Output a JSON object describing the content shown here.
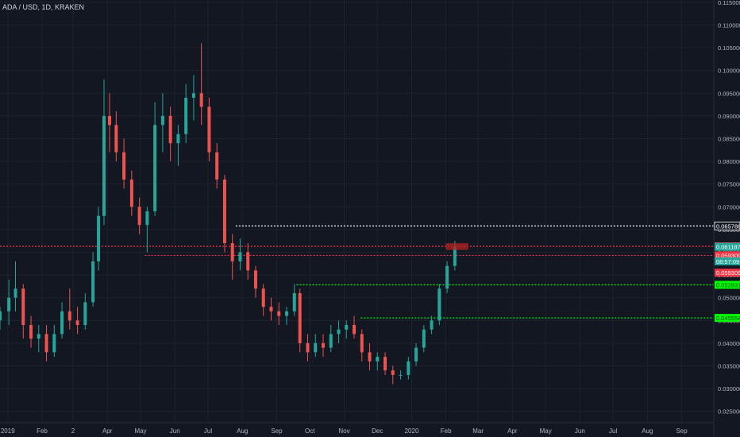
{
  "header": {
    "symbol_title": "ADA / USD, 1D, KRAKEN"
  },
  "chart_data": {
    "type": "candlestick",
    "title": "ADA / USD, 1D, KRAKEN",
    "y_axis": {
      "range": [
        0.0225,
        0.1155
      ],
      "ticks": [
        "0.115000",
        "0.110000",
        "0.105000",
        "0.100000",
        "0.095000",
        "0.090000",
        "0.085000",
        "0.080000",
        "0.075000",
        "0.070000",
        "0.065000",
        "0.060000",
        "0.055000",
        "0.050000",
        "0.045000",
        "0.040000",
        "0.035000",
        "0.030000",
        "0.025000"
      ]
    },
    "x_axis": {
      "range": [
        "2018-12-25",
        "2020-09-30"
      ],
      "ticks": [
        {
          "label": "2019",
          "date": "2019-01-01"
        },
        {
          "label": "Feb",
          "date": "2019-02-01"
        },
        {
          "label": "2",
          "date": "2019-03-01"
        },
        {
          "label": "Apr",
          "date": "2019-04-01"
        },
        {
          "label": "May",
          "date": "2019-05-01"
        },
        {
          "label": "Jun",
          "date": "2019-06-01"
        },
        {
          "label": "Jul",
          "date": "2019-07-01"
        },
        {
          "label": "Aug",
          "date": "2019-08-01"
        },
        {
          "label": "Sep",
          "date": "2019-09-01"
        },
        {
          "label": "Oct",
          "date": "2019-10-01"
        },
        {
          "label": "Nov",
          "date": "2019-11-01"
        },
        {
          "label": "Dec",
          "date": "2019-12-01"
        },
        {
          "label": "2020",
          "date": "2020-01-01"
        },
        {
          "label": "Feb",
          "date": "2020-02-01"
        },
        {
          "label": "Mar",
          "date": "2020-03-01"
        },
        {
          "label": "Apr",
          "date": "2020-04-01"
        },
        {
          "label": "May",
          "date": "2020-05-01"
        },
        {
          "label": "Jun",
          "date": "2020-06-01"
        },
        {
          "label": "Jul",
          "date": "2020-07-01"
        },
        {
          "label": "Aug",
          "date": "2020-08-01"
        },
        {
          "label": "Sep",
          "date": "2020-09-01"
        }
      ]
    },
    "grid": true,
    "colors": {
      "up": "#26a69a",
      "down": "#ef5350",
      "background": "#131722",
      "grid": "#1e222d"
    },
    "series": [
      {
        "ohlc": [
          [
            "2018-12-25",
            0.045,
            0.048,
            0.043,
            0.047
          ],
          [
            "2019-01-02",
            0.047,
            0.054,
            0.044,
            0.05
          ],
          [
            "2019-01-08",
            0.05,
            0.058,
            0.047,
            0.052
          ],
          [
            "2019-01-15",
            0.052,
            0.053,
            0.041,
            0.044
          ],
          [
            "2019-01-22",
            0.044,
            0.046,
            0.039,
            0.041
          ],
          [
            "2019-01-29",
            0.041,
            0.044,
            0.038,
            0.042
          ],
          [
            "2019-02-05",
            0.042,
            0.044,
            0.036,
            0.038
          ],
          [
            "2019-02-12",
            0.038,
            0.044,
            0.037,
            0.042
          ],
          [
            "2019-02-19",
            0.042,
            0.049,
            0.041,
            0.047
          ],
          [
            "2019-02-26",
            0.047,
            0.052,
            0.043,
            0.045
          ],
          [
            "2019-03-05",
            0.045,
            0.048,
            0.042,
            0.044
          ],
          [
            "2019-03-12",
            0.044,
            0.051,
            0.043,
            0.049
          ],
          [
            "2019-03-19",
            0.049,
            0.06,
            0.048,
            0.058
          ],
          [
            "2019-03-24",
            0.058,
            0.07,
            0.056,
            0.068
          ],
          [
            "2019-03-29",
            0.068,
            0.098,
            0.066,
            0.09
          ],
          [
            "2019-04-03",
            0.09,
            0.095,
            0.082,
            0.088
          ],
          [
            "2019-04-09",
            0.088,
            0.091,
            0.08,
            0.082
          ],
          [
            "2019-04-16",
            0.082,
            0.085,
            0.074,
            0.076
          ],
          [
            "2019-04-23",
            0.076,
            0.078,
            0.068,
            0.07
          ],
          [
            "2019-04-30",
            0.07,
            0.072,
            0.064,
            0.066
          ],
          [
            "2019-05-07",
            0.066,
            0.07,
            0.06,
            0.069
          ],
          [
            "2019-05-14",
            0.069,
            0.093,
            0.068,
            0.088
          ],
          [
            "2019-05-21",
            0.088,
            0.095,
            0.082,
            0.09
          ],
          [
            "2019-05-28",
            0.09,
            0.092,
            0.08,
            0.084
          ],
          [
            "2019-06-04",
            0.084,
            0.088,
            0.079,
            0.086
          ],
          [
            "2019-06-11",
            0.086,
            0.097,
            0.084,
            0.094
          ],
          [
            "2019-06-18",
            0.094,
            0.099,
            0.089,
            0.095
          ],
          [
            "2019-06-25",
            0.095,
            0.106,
            0.088,
            0.092
          ],
          [
            "2019-07-02",
            0.092,
            0.094,
            0.08,
            0.082
          ],
          [
            "2019-07-09",
            0.082,
            0.084,
            0.074,
            0.076
          ],
          [
            "2019-07-16",
            0.076,
            0.077,
            0.06,
            0.062
          ],
          [
            "2019-07-23",
            0.062,
            0.064,
            0.054,
            0.058
          ],
          [
            "2019-07-30",
            0.058,
            0.063,
            0.056,
            0.06
          ],
          [
            "2019-08-06",
            0.06,
            0.062,
            0.054,
            0.056
          ],
          [
            "2019-08-13",
            0.056,
            0.057,
            0.05,
            0.052
          ],
          [
            "2019-08-20",
            0.052,
            0.053,
            0.046,
            0.048
          ],
          [
            "2019-08-27",
            0.048,
            0.05,
            0.045,
            0.047
          ],
          [
            "2019-09-03",
            0.047,
            0.049,
            0.044,
            0.046
          ],
          [
            "2019-09-10",
            0.046,
            0.048,
            0.044,
            0.047
          ],
          [
            "2019-09-17",
            0.047,
            0.053,
            0.046,
            0.051
          ],
          [
            "2019-09-22",
            0.051,
            0.052,
            0.038,
            0.04
          ],
          [
            "2019-09-29",
            0.04,
            0.042,
            0.036,
            0.038
          ],
          [
            "2019-10-06",
            0.038,
            0.042,
            0.037,
            0.04
          ],
          [
            "2019-10-13",
            0.04,
            0.042,
            0.037,
            0.039
          ],
          [
            "2019-10-20",
            0.039,
            0.044,
            0.038,
            0.042
          ],
          [
            "2019-10-27",
            0.042,
            0.045,
            0.04,
            0.043
          ],
          [
            "2019-11-03",
            0.043,
            0.045,
            0.041,
            0.044
          ],
          [
            "2019-11-10",
            0.044,
            0.046,
            0.041,
            0.042
          ],
          [
            "2019-11-17",
            0.042,
            0.043,
            0.036,
            0.038
          ],
          [
            "2019-11-24",
            0.038,
            0.04,
            0.034,
            0.036
          ],
          [
            "2019-12-01",
            0.036,
            0.038,
            0.034,
            0.037
          ],
          [
            "2019-12-08",
            0.037,
            0.038,
            0.033,
            0.034
          ],
          [
            "2019-12-15",
            0.034,
            0.035,
            0.031,
            0.033
          ],
          [
            "2019-12-22",
            0.033,
            0.034,
            0.032,
            0.033
          ],
          [
            "2019-12-29",
            0.033,
            0.037,
            0.032,
            0.036
          ],
          [
            "2020-01-05",
            0.036,
            0.04,
            0.035,
            0.039
          ],
          [
            "2020-01-12",
            0.039,
            0.044,
            0.038,
            0.043
          ],
          [
            "2020-01-19",
            0.043,
            0.046,
            0.042,
            0.045
          ],
          [
            "2020-01-26",
            0.045,
            0.053,
            0.044,
            0.052
          ],
          [
            "2020-02-02",
            0.052,
            0.058,
            0.051,
            0.057
          ],
          [
            "2020-02-09",
            0.057,
            0.0625,
            0.056,
            0.0612
          ]
        ]
      }
    ],
    "horizontal_levels": [
      {
        "value": 0.065788,
        "label": "0.065788",
        "color": "#ffffff",
        "style": "dotted",
        "from": "2019-07-26"
      },
      {
        "value": 0.061302,
        "label": "0.061302",
        "color": "#f23645",
        "style": "dotted",
        "from": "2018-12-25"
      },
      {
        "value": 0.059309,
        "label": "0.059309",
        "color": "#f23645",
        "style": "dotted",
        "from": "2019-05-05"
      },
      {
        "value": 0.052831,
        "label": "0.052831",
        "color": "#00ff00",
        "style": "dotted",
        "from": "2019-09-19"
      },
      {
        "value": 0.045554,
        "label": "0.045554",
        "color": "#00ff00",
        "style": "dotted",
        "from": "2019-11-16"
      }
    ],
    "price_markers": [
      {
        "value": 0.061187,
        "label": "0.061187",
        "color": "#26a69a"
      },
      {
        "value": 0.058,
        "label": "08:57:09",
        "color": "#26a69a"
      },
      {
        "value": 0.0555,
        "label": "0.059309",
        "color": "#f23645"
      }
    ],
    "highlight_zone": {
      "from": "2020-02-01",
      "to": "2020-02-21",
      "y_top": 0.062,
      "y_bottom": 0.0605,
      "color": "#b22222"
    }
  }
}
